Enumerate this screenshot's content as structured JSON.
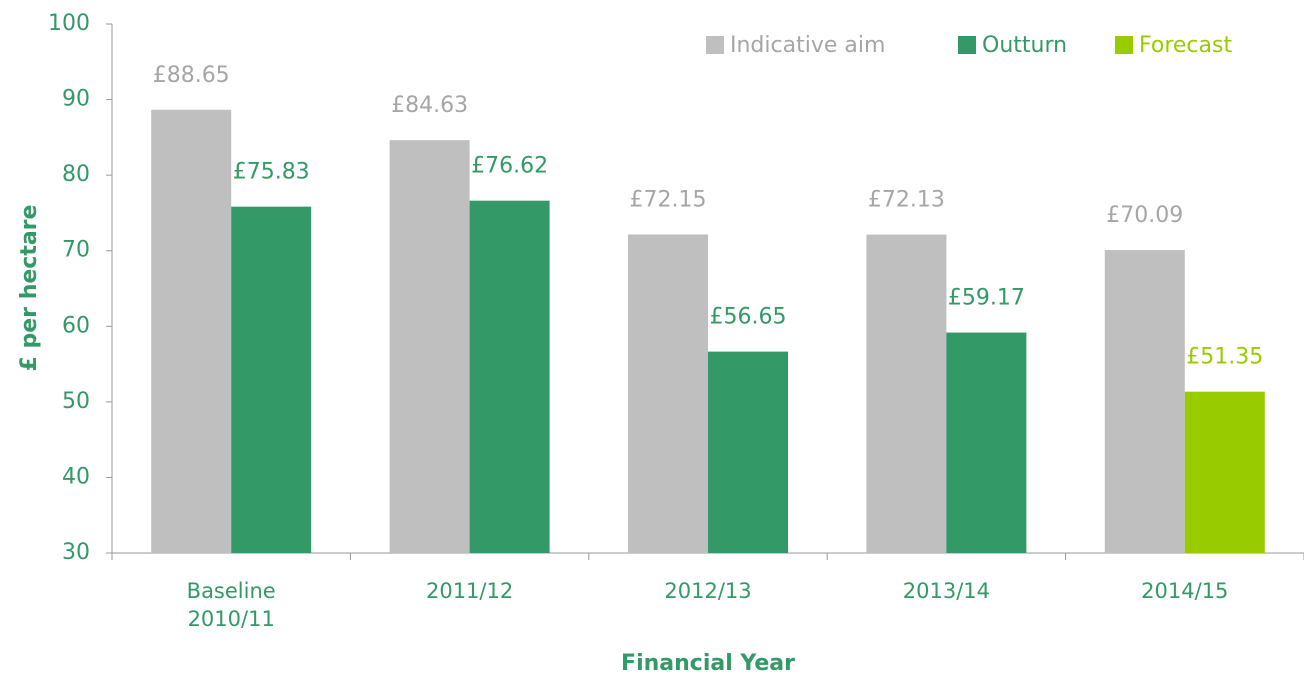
{
  "chart_data": {
    "type": "bar",
    "categories": [
      "Baseline 2010/11",
      "2011/12",
      "2012/13",
      "2013/14",
      "2014/15"
    ],
    "series": [
      {
        "name": "Indicative aim",
        "color": "#bfbfbf",
        "label_color": "#a6a6a6",
        "values": [
          88.65,
          84.63,
          72.15,
          72.13,
          70.09
        ],
        "value_labels": [
          "£88.65",
          "£84.63",
          "£72.15",
          "£72.13",
          "£70.09"
        ]
      },
      {
        "name": "Outturn",
        "color": "#339966",
        "label_color": "#339966",
        "values": [
          75.83,
          76.62,
          56.65,
          59.17,
          null
        ],
        "value_labels": [
          "£75.83",
          "£76.62",
          "£56.65",
          "£59.17",
          null
        ]
      },
      {
        "name": "Forecast",
        "color": "#99cc00",
        "label_color": "#99cc00",
        "values": [
          null,
          null,
          null,
          null,
          51.35
        ],
        "value_labels": [
          null,
          null,
          null,
          null,
          "£51.35"
        ]
      }
    ],
    "ylim": [
      30,
      100
    ],
    "yticks": [
      30,
      40,
      50,
      60,
      70,
      80,
      90,
      100
    ],
    "xlabel": "Financial Year",
    "ylabel": "£ per hectare",
    "legend": "top-right",
    "grid": false
  }
}
